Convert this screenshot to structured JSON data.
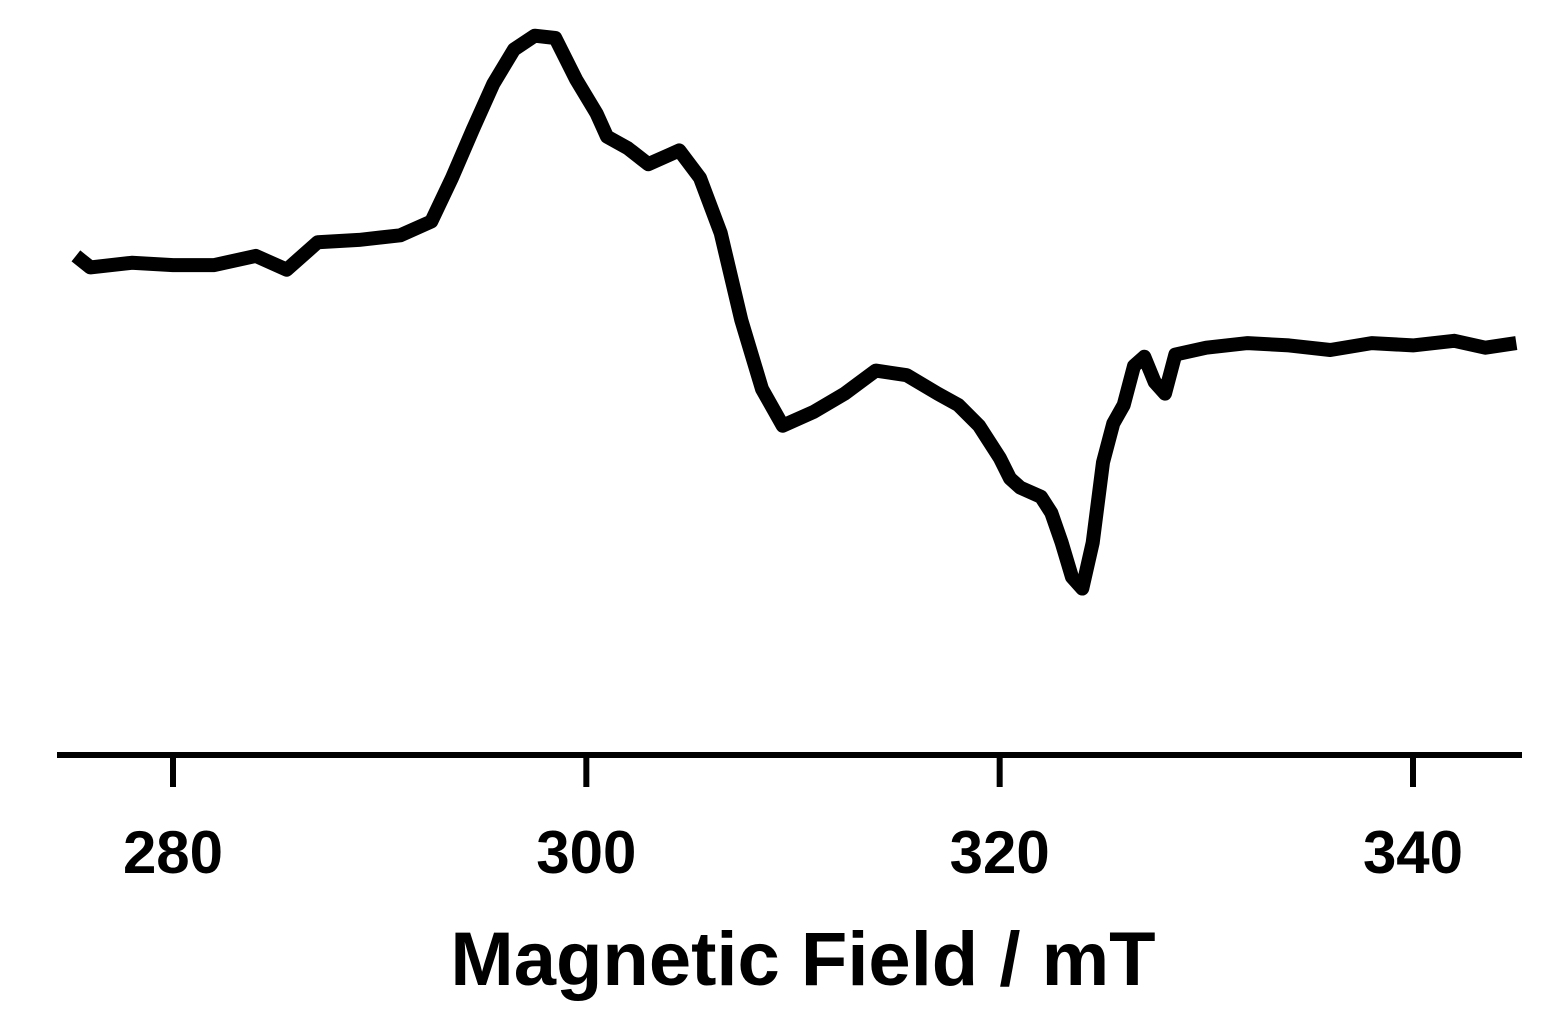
{
  "chart_data": {
    "type": "line",
    "title": "",
    "xlabel": "Magnetic Field / mT",
    "ylabel": "",
    "xlim": [
      275,
      345
    ],
    "ylim": [
      -1.1,
      1.35
    ],
    "x_ticks": [
      280,
      300,
      320,
      340
    ],
    "x_tick_labels": [
      "280",
      "300",
      "320",
      "340"
    ],
    "y_axis_visible": false,
    "grid": false,
    "legend": "none",
    "line_color": "#000000",
    "series": [
      {
        "x": [
          275.3,
          276.0,
          278.0,
          280.0,
          282.0,
          284.0,
          285.5,
          287.0,
          289.0,
          291.0,
          292.5,
          293.5,
          294.5,
          295.5,
          296.5,
          297.5,
          298.5,
          299.5,
          300.5,
          301.0,
          302.0,
          303.0,
          304.0,
          304.5,
          305.5,
          306.5,
          307.5,
          308.5,
          309.5,
          311.0,
          312.5,
          314.0,
          315.5,
          317.0,
          318.0,
          319.0,
          320.0,
          320.5,
          321.0,
          322.0,
          322.5,
          323.0,
          323.5,
          324.0,
          324.5,
          325.0,
          325.5,
          326.0,
          326.5,
          327.0,
          327.5,
          328.0,
          328.5,
          330.0,
          332.0,
          334.0,
          336.0,
          338.0,
          340.0,
          342.0,
          343.5,
          345.0
        ],
        "y": [
          0.4,
          0.35,
          0.37,
          0.36,
          0.36,
          0.4,
          0.34,
          0.46,
          0.47,
          0.49,
          0.55,
          0.74,
          0.95,
          1.15,
          1.3,
          1.36,
          1.35,
          1.17,
          1.02,
          0.92,
          0.87,
          0.8,
          0.84,
          0.86,
          0.74,
          0.5,
          0.12,
          -0.18,
          -0.34,
          -0.28,
          -0.2,
          -0.1,
          -0.12,
          -0.2,
          -0.25,
          -0.34,
          -0.48,
          -0.57,
          -0.61,
          -0.65,
          -0.72,
          -0.85,
          -1.0,
          -1.05,
          -0.85,
          -0.5,
          -0.33,
          -0.25,
          -0.08,
          -0.04,
          -0.15,
          -0.2,
          -0.03,
          0.0,
          0.02,
          0.01,
          -0.01,
          0.02,
          0.01,
          0.03,
          0.0,
          0.02
        ]
      }
    ]
  }
}
